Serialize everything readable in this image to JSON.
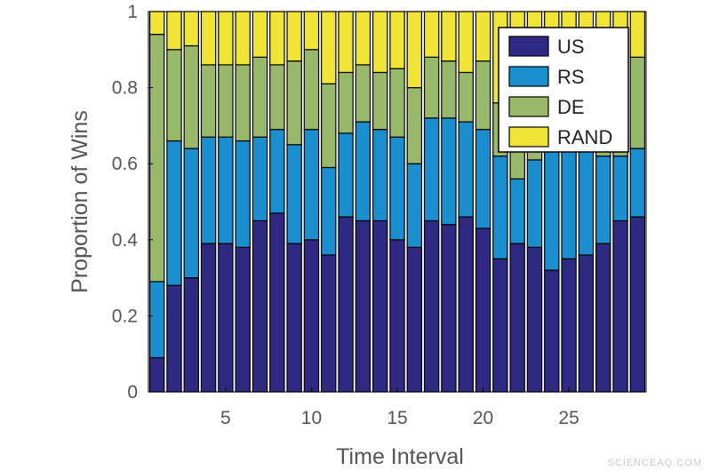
{
  "chart_data": {
    "type": "bar",
    "stacked": true,
    "xlabel": "Time Interval",
    "ylabel": "Proportion of Wins",
    "ylim": [
      0,
      1
    ],
    "xlim": [
      0.5,
      29.5
    ],
    "x": [
      1,
      2,
      3,
      4,
      5,
      6,
      7,
      8,
      9,
      10,
      11,
      12,
      13,
      14,
      15,
      16,
      17,
      18,
      19,
      20,
      21,
      22,
      23,
      24,
      25,
      26,
      27,
      28,
      29
    ],
    "x_ticks": [
      5,
      10,
      15,
      20,
      25
    ],
    "y_ticks": [
      0,
      0.2,
      0.4,
      0.6,
      0.8,
      1
    ],
    "y_tick_labels": [
      "0",
      "0.2",
      "0.4",
      "0.6",
      "0.8",
      "1"
    ],
    "grid": false,
    "legend_position": "top-right",
    "series": [
      {
        "name": "US",
        "color": "#2e2a84",
        "values": [
          0.09,
          0.28,
          0.3,
          0.39,
          0.39,
          0.38,
          0.45,
          0.47,
          0.39,
          0.4,
          0.36,
          0.46,
          0.45,
          0.45,
          0.4,
          0.38,
          0.45,
          0.44,
          0.46,
          0.43,
          0.35,
          0.39,
          0.38,
          0.32,
          0.35,
          0.36,
          0.39,
          0.45,
          0.46
        ]
      },
      {
        "name": "RS",
        "color": "#1a8fcf",
        "values": [
          0.2,
          0.38,
          0.34,
          0.28,
          0.28,
          0.28,
          0.22,
          0.22,
          0.26,
          0.29,
          0.23,
          0.22,
          0.26,
          0.24,
          0.27,
          0.22,
          0.27,
          0.28,
          0.25,
          0.26,
          0.27,
          0.17,
          0.23,
          0.34,
          0.32,
          0.31,
          0.23,
          0.17,
          0.18
        ]
      },
      {
        "name": "DE",
        "color": "#98b86a",
        "values": [
          0.65,
          0.24,
          0.27,
          0.19,
          0.19,
          0.2,
          0.21,
          0.17,
          0.22,
          0.21,
          0.22,
          0.16,
          0.15,
          0.15,
          0.18,
          0.2,
          0.16,
          0.15,
          0.13,
          0.18,
          0.14,
          0.13,
          0.12,
          0.13,
          0.13,
          0.13,
          0.12,
          0.08,
          0.24
        ]
      },
      {
        "name": "RAND",
        "color": "#f0e534",
        "values": [
          0.06,
          0.1,
          0.09,
          0.14,
          0.14,
          0.14,
          0.12,
          0.16,
          0.13,
          0.1,
          0.19,
          0.16,
          0.14,
          0.16,
          0.15,
          0.2,
          0.12,
          0.13,
          0.16,
          0.13,
          0.24,
          0.31,
          0.27,
          0.21,
          0.2,
          0.2,
          0.26,
          0.3,
          0.12
        ]
      }
    ]
  },
  "watermark": "SCIENCEAQ.COM"
}
